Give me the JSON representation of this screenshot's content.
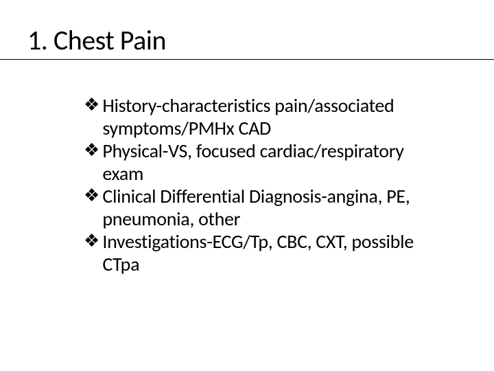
{
  "slide": {
    "title": "1. Chest Pain",
    "title_fontsize": 40,
    "title_color": "#000000",
    "underline_color": "#000000",
    "body_fontsize": 28,
    "body_color": "#000000",
    "bullet_glyph": "❖",
    "bullet_color": "#000000",
    "background_color": "#ffffff",
    "items": [
      {
        "text": "History-characteristics pain/associated symptoms/PMHx CAD"
      },
      {
        "text": "Physical-VS, focused cardiac/respiratory exam"
      },
      {
        "text": "Clinical Differential Diagnosis-angina, PE, pneumonia, other"
      },
      {
        "text": "Investigations-ECG/Tp, CBC, CXT, possible CTpa"
      }
    ]
  }
}
